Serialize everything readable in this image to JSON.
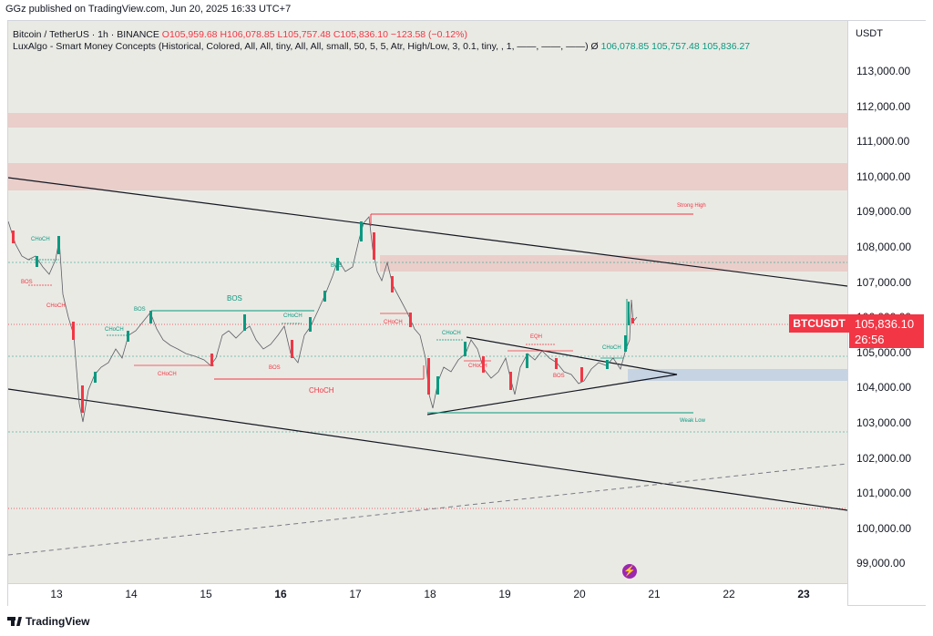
{
  "publish_line": "GGz published on TradingView.com, Jun 20, 2025 16:33 UTC+7",
  "legend": {
    "symbol": "Bitcoin / TetherUS · 1h · BINANCE",
    "o": "O105,959.68",
    "h": "H106,078.85",
    "l": "L105,757.48",
    "c": "C105,836.10",
    "change": "−123.58 (−0.12%)",
    "indicator": "LuxAlgo - Smart Money Concepts (Historical, Colored, All, All, tiny, All, All, small, 50, 5, 5, Atr, High/Low, 3, 0.1, tiny, , 1, ——, ——, ——)",
    "indicator_eye": "Ø",
    "ind_v1": "106,078.85",
    "ind_v2": "105,757.48",
    "ind_v3": "105,836.27"
  },
  "currency": "USDT",
  "price_ticks": [
    "113,000.00",
    "112,000.00",
    "111,000.00",
    "110,000.00",
    "109,000.00",
    "108,000.00",
    "107,000.00",
    "106,000.00",
    "105,000.00",
    "104,000.00",
    "103,000.00",
    "102,000.00",
    "101,000.00",
    "100,000.00",
    "99,000.00"
  ],
  "time_ticks": [
    "13",
    "14",
    "15",
    "16",
    "17",
    "18",
    "19",
    "20",
    "21",
    "22",
    "23"
  ],
  "last_price": {
    "symbol": "BTCUSDT",
    "price": "105,836.10",
    "countdown": "26:56"
  },
  "smc_labels": {
    "choch": "CHoCH",
    "bos": "BOS",
    "eqh": "EQH",
    "strong_high": "Strong High",
    "weak_low": "Weak Low"
  },
  "brand": "TradingView",
  "colors": {
    "bull": "#089981",
    "bear": "#f23645",
    "bg": "#eaeae4"
  }
}
